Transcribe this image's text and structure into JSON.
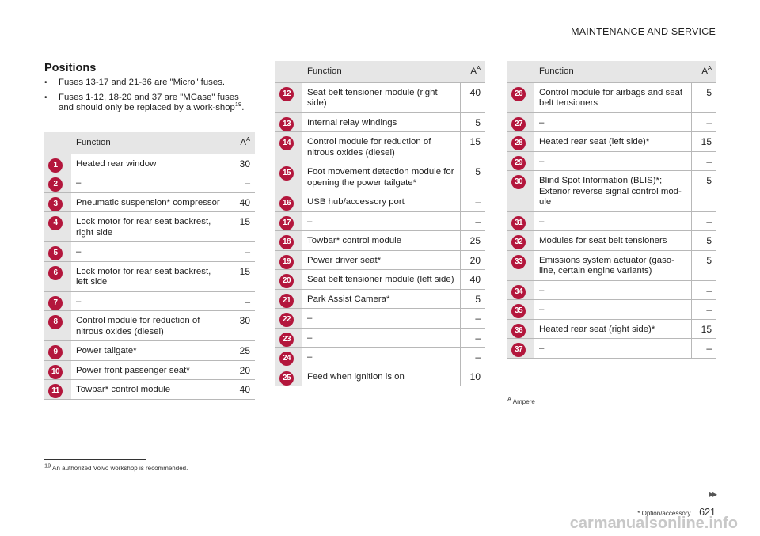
{
  "header": {
    "section_title": "MAINTENANCE AND SERVICE"
  },
  "positions": {
    "heading": "Positions",
    "bullet_glyph": "•",
    "bullets": [
      "Fuses 13-17 and 21-36 are \"Micro\" fuses.",
      "Fuses 1-12, 18-20 and 37 are \"MCase\" fuses and should only be replaced by a work-shop"
    ],
    "bullet2_ref": "19",
    "bullet2_end": "."
  },
  "table_header": {
    "function": "Function",
    "ampere": "A",
    "ampere_ref": "A"
  },
  "table1": [
    {
      "num": "1",
      "function": "Heated rear window",
      "ampere": "30"
    },
    {
      "num": "2",
      "function": "–",
      "ampere": "–"
    },
    {
      "num": "3",
      "function": "Pneumatic suspension* compressor",
      "ampere": "40"
    },
    {
      "num": "4",
      "function": "Lock motor for rear seat backrest, right side",
      "ampere": "15"
    },
    {
      "num": "5",
      "function": "–",
      "ampere": "–"
    },
    {
      "num": "6",
      "function": "Lock motor for rear seat backrest, left side",
      "ampere": "15"
    },
    {
      "num": "7",
      "function": "–",
      "ampere": "–"
    },
    {
      "num": "8",
      "function": "Control module for reduction of nitrous oxides (diesel)",
      "ampere": "30"
    },
    {
      "num": "9",
      "function": "Power tailgate*",
      "ampere": "25"
    },
    {
      "num": "10",
      "function": "Power front passenger seat*",
      "ampere": "20"
    },
    {
      "num": "11",
      "function": "Towbar* control module",
      "ampere": "40"
    }
  ],
  "table2": [
    {
      "num": "12",
      "function": "Seat belt tensioner module (right side)",
      "ampere": "40"
    },
    {
      "num": "13",
      "function": "Internal relay windings",
      "ampere": "5"
    },
    {
      "num": "14",
      "function": "Control module for reduction of nitrous oxides (diesel)",
      "ampere": "15"
    },
    {
      "num": "15",
      "function": "Foot movement detection module for opening the power tailgate*",
      "ampere": "5"
    },
    {
      "num": "16",
      "function": "USB hub/accessory port",
      "ampere": "–"
    },
    {
      "num": "17",
      "function": "–",
      "ampere": "–"
    },
    {
      "num": "18",
      "function": "Towbar* control module",
      "ampere": "25"
    },
    {
      "num": "19",
      "function": "Power driver seat*",
      "ampere": "20"
    },
    {
      "num": "20",
      "function": "Seat belt tensioner module (left side)",
      "ampere": "40"
    },
    {
      "num": "21",
      "function": "Park Assist Camera*",
      "ampere": "5"
    },
    {
      "num": "22",
      "function": "–",
      "ampere": "–"
    },
    {
      "num": "23",
      "function": "–",
      "ampere": "–"
    },
    {
      "num": "24",
      "function": "–",
      "ampere": "–"
    },
    {
      "num": "25",
      "function": "Feed when ignition is on",
      "ampere": "10"
    }
  ],
  "table3": [
    {
      "num": "26",
      "function": "Control module for airbags and seat belt tensioners",
      "ampere": "5"
    },
    {
      "num": "27",
      "function": "–",
      "ampere": "–"
    },
    {
      "num": "28",
      "function": "Heated rear seat (left side)*",
      "ampere": "15"
    },
    {
      "num": "29",
      "function": "–",
      "ampere": "–"
    },
    {
      "num": "30",
      "function": "Blind Spot Information (BLIS)*; Exterior reverse signal control mod-ule",
      "ampere": "5"
    },
    {
      "num": "31",
      "function": "–",
      "ampere": "–"
    },
    {
      "num": "32",
      "function": "Modules for seat belt tensioners",
      "ampere": "5"
    },
    {
      "num": "33",
      "function": "Emissions system actuator (gaso-line, certain engine variants)",
      "ampere": "5"
    },
    {
      "num": "34",
      "function": "–",
      "ampere": "–"
    },
    {
      "num": "35",
      "function": "–",
      "ampere": "–"
    },
    {
      "num": "36",
      "function": "Heated rear seat (right side)*",
      "ampere": "15"
    },
    {
      "num": "37",
      "function": "–",
      "ampere": "–"
    }
  ],
  "table_footnote": {
    "marker": "A",
    "text": "Ampere"
  },
  "page_footnote": {
    "number": "19",
    "text": "An authorized Volvo workshop is recommended."
  },
  "footer": {
    "next_glyph": "▸▸",
    "option_note": "* Option/accessory.",
    "page_number": "621"
  },
  "watermark": "carmanualsonline.info",
  "colors": {
    "badge": "#b3163c",
    "header_bg": "#e6e6e6",
    "rule": "#b8b8b8"
  }
}
